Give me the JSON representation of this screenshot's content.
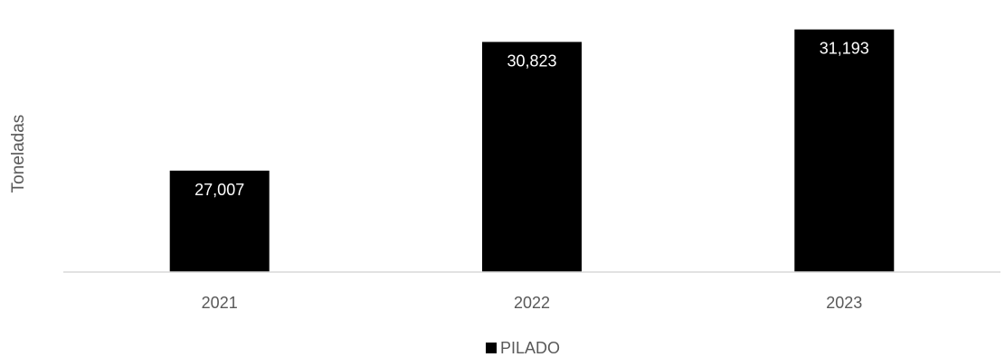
{
  "chart_data": {
    "type": "bar",
    "categories": [
      "2021",
      "2022",
      "2023"
    ],
    "series": [
      {
        "name": "PILADO",
        "values": [
          27007,
          30823,
          31193
        ],
        "labels": [
          "27,007",
          "30,823",
          "31,193"
        ],
        "color": "#000000"
      }
    ],
    "title": "",
    "xlabel": "",
    "ylabel": "Toneladas",
    "ylim": [
      24000,
      31800
    ],
    "grid": false,
    "legend": "bottom",
    "axis_color": "#d9d9d9",
    "label_color": "#595959",
    "data_label_color": "#ffffff"
  }
}
